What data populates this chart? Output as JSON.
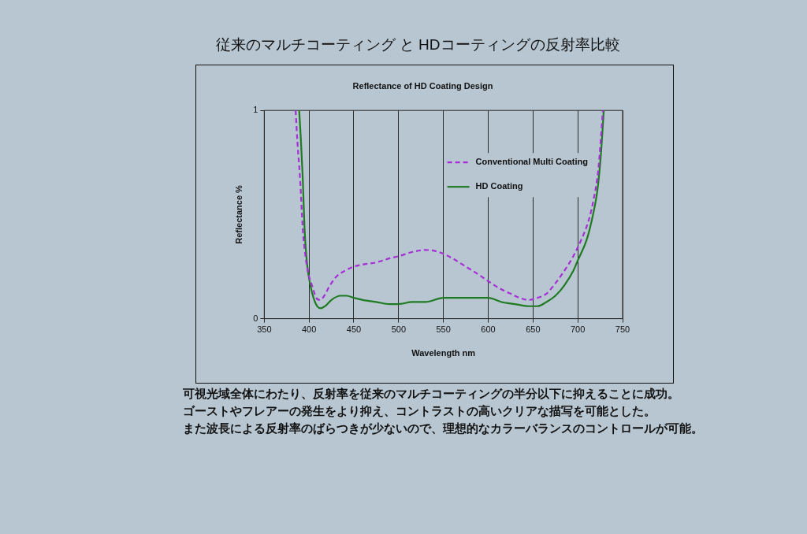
{
  "chart_data": {
    "type": "line",
    "title": "従来のマルチコーティング と HDコーティングの反射率比較",
    "subtitle": "Reflectance of HD Coating Design",
    "xlabel": "Wavelength nm",
    "ylabel": "Reflectance %",
    "xlim": [
      350,
      750
    ],
    "xticks": [
      350,
      400,
      450,
      500,
      550,
      600,
      650,
      700,
      750
    ],
    "ylim": [
      0,
      1
    ],
    "yticks": [
      0,
      1
    ],
    "grid": "x",
    "legend": "top right",
    "marker": "none",
    "series": [
      {
        "name": "Conventional Multi Coating",
        "color": "#a62fd6",
        "line_style": "dashed",
        "x": [
          385,
          387,
          390,
          393,
          396,
          399,
          404,
          408,
          412,
          417,
          422,
          430,
          440,
          450,
          460,
          475,
          490,
          500,
          515,
          530,
          545,
          560,
          575,
          590,
          600,
          615,
          625,
          635,
          645,
          655,
          665,
          675,
          685,
          695,
          705,
          712,
          718,
          723,
          728
        ],
        "values": [
          1,
          0.85,
          0.67,
          0.43,
          0.3,
          0.22,
          0.15,
          0.1,
          0.09,
          0.11,
          0.15,
          0.2,
          0.23,
          0.25,
          0.26,
          0.27,
          0.29,
          0.3,
          0.32,
          0.33,
          0.32,
          0.29,
          0.25,
          0.21,
          0.18,
          0.14,
          0.12,
          0.1,
          0.09,
          0.1,
          0.12,
          0.17,
          0.23,
          0.3,
          0.39,
          0.47,
          0.58,
          0.72,
          1
        ]
      },
      {
        "name": "HD Coating",
        "color": "#1f7a22",
        "line_style": "solid",
        "x": [
          389,
          391,
          393,
          395,
          397,
          399,
          402,
          405,
          409,
          413,
          418,
          425,
          435,
          442,
          450,
          460,
          475,
          490,
          500,
          515,
          530,
          550,
          570,
          585,
          600,
          615,
          630,
          645,
          655,
          665,
          675,
          685,
          695,
          700,
          710,
          717,
          722,
          726,
          729
        ],
        "values": [
          1,
          0.85,
          0.67,
          0.43,
          0.3,
          0.22,
          0.15,
          0.1,
          0.06,
          0.05,
          0.06,
          0.09,
          0.11,
          0.11,
          0.1,
          0.09,
          0.08,
          0.07,
          0.07,
          0.08,
          0.08,
          0.1,
          0.1,
          0.1,
          0.1,
          0.08,
          0.07,
          0.06,
          0.06,
          0.08,
          0.11,
          0.16,
          0.23,
          0.28,
          0.38,
          0.5,
          0.62,
          0.8,
          1
        ]
      }
    ],
    "annotations": [
      "可視光域全体にわたり、反射率を従来のマルチコーティングの半分以下に抑えることに成功。",
      "ゴーストやフレアーの発生をより抑え、コントラストの高いクリアな描写を可能とした。",
      "また波長による反射率のばらつきが少ないので、理想的なカラーバランスのコントロールが可能。"
    ]
  }
}
